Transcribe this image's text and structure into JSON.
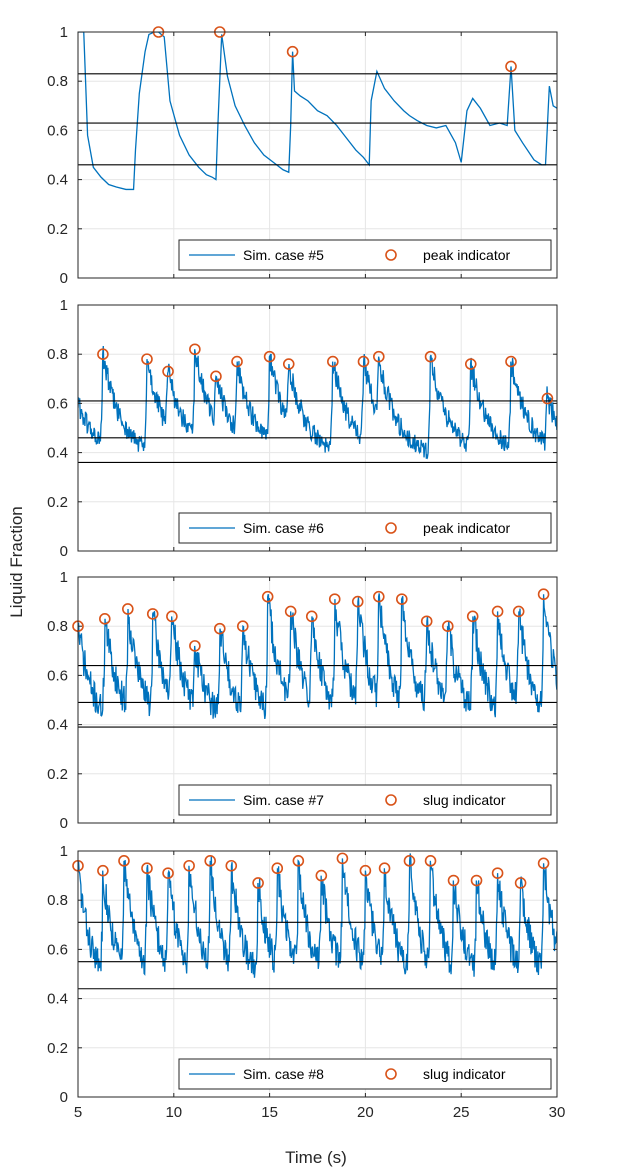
{
  "figure": {
    "ylabel": "Liquid Fraction",
    "xlabel": "Time (s)",
    "series_color": "#0072bd",
    "marker_color": "#d95319",
    "threshold_color": "#000000"
  },
  "chart_data": [
    {
      "type": "line",
      "xlim": [
        5,
        30
      ],
      "ylim": [
        0,
        1
      ],
      "grid": true,
      "xticks": [
        "",
        "",
        "",
        "",
        "",
        ""
      ],
      "yticks": [
        "0",
        "0.2",
        "0.4",
        "0.6",
        "0.8",
        "1"
      ],
      "legend": {
        "placement": "bottom-right",
        "line_label": "Sim. case #5",
        "marker_label": "peak indicator"
      },
      "thresholds": [
        0.83,
        0.63,
        0.46
      ],
      "peaks": {
        "x": [
          9.2,
          12.4,
          16.2,
          27.6
        ],
        "y": [
          1.0,
          1.0,
          0.92,
          0.86
        ]
      },
      "series": {
        "x": [
          5.0,
          5.3,
          5.5,
          5.8,
          6.2,
          6.6,
          7.0,
          7.5,
          7.9,
          8.0,
          8.2,
          8.5,
          8.7,
          9.0,
          9.2,
          9.5,
          9.8,
          10.3,
          10.8,
          11.3,
          11.7,
          12.0,
          12.2,
          12.3,
          12.5,
          12.8,
          13.2,
          13.7,
          14.2,
          14.7,
          15.2,
          15.7,
          16.0,
          16.1,
          16.2,
          16.3,
          16.6,
          17.0,
          17.5,
          18.0,
          18.5,
          19.0,
          19.5,
          19.9,
          20.2,
          20.3,
          20.6,
          21.0,
          21.5,
          22.0,
          22.3,
          22.7,
          23.2,
          23.7,
          24.2,
          24.7,
          25.0,
          25.3,
          25.6,
          26.0,
          26.5,
          27.0,
          27.4,
          27.6,
          27.8,
          28.2,
          28.8,
          29.2,
          29.4,
          29.6,
          29.8,
          30.0
        ],
        "y": [
          1.0,
          1.0,
          0.58,
          0.45,
          0.41,
          0.38,
          0.37,
          0.36,
          0.36,
          0.52,
          0.75,
          0.92,
          0.99,
          1.0,
          1.0,
          0.98,
          0.72,
          0.58,
          0.5,
          0.45,
          0.42,
          0.41,
          0.4,
          0.62,
          0.99,
          0.82,
          0.7,
          0.62,
          0.55,
          0.5,
          0.47,
          0.44,
          0.43,
          0.62,
          0.92,
          0.76,
          0.74,
          0.72,
          0.68,
          0.66,
          0.62,
          0.57,
          0.52,
          0.49,
          0.46,
          0.72,
          0.84,
          0.77,
          0.72,
          0.68,
          0.66,
          0.64,
          0.62,
          0.61,
          0.62,
          0.55,
          0.47,
          0.68,
          0.73,
          0.69,
          0.62,
          0.63,
          0.62,
          0.86,
          0.6,
          0.55,
          0.48,
          0.46,
          0.46,
          0.78,
          0.7,
          0.69
        ]
      }
    },
    {
      "type": "line",
      "xlim": [
        5,
        30
      ],
      "ylim": [
        0,
        1
      ],
      "grid": true,
      "xticks": [
        "",
        "",
        "",
        "",
        "",
        ""
      ],
      "yticks": [
        "0",
        "0.2",
        "0.4",
        "0.6",
        "0.8",
        "1"
      ],
      "legend": {
        "placement": "bottom-right",
        "line_label": "Sim. case #6",
        "marker_label": "peak indicator"
      },
      "thresholds": [
        0.61,
        0.46,
        0.36
      ],
      "peaks": {
        "x": [
          6.3,
          8.6,
          9.7,
          11.1,
          12.2,
          13.3,
          15.0,
          16.0,
          18.3,
          19.9,
          20.7,
          23.4,
          25.5,
          27.6,
          29.5
        ],
        "y": [
          0.8,
          0.78,
          0.73,
          0.82,
          0.71,
          0.77,
          0.79,
          0.76,
          0.77,
          0.77,
          0.79,
          0.79,
          0.76,
          0.77,
          0.62
        ]
      },
      "series": {
        "noise_seed": 61,
        "baseline": 0.36,
        "decay_amplitude": 0.28,
        "decay_rate": 1.1,
        "noise_amplitude": 0.05
      }
    },
    {
      "type": "line",
      "xlim": [
        5,
        30
      ],
      "ylim": [
        0,
        1
      ],
      "grid": true,
      "xticks": [
        "",
        "",
        "",
        "",
        "",
        ""
      ],
      "yticks": [
        "0",
        "0.2",
        "0.4",
        "0.6",
        "0.8",
        "1"
      ],
      "legend": {
        "placement": "bottom-right",
        "line_label": "Sim. case #7",
        "marker_label": "slug indicator"
      },
      "thresholds": [
        0.64,
        0.49,
        0.39
      ],
      "peaks": {
        "x": [
          5.0,
          6.4,
          7.6,
          8.9,
          9.9,
          11.1,
          12.4,
          13.6,
          14.9,
          16.1,
          17.2,
          18.4,
          19.6,
          20.7,
          21.9,
          23.2,
          24.3,
          25.6,
          26.9,
          28.0,
          29.3
        ],
        "y": [
          0.8,
          0.83,
          0.87,
          0.85,
          0.84,
          0.72,
          0.79,
          0.8,
          0.92,
          0.86,
          0.84,
          0.91,
          0.9,
          0.92,
          0.91,
          0.82,
          0.8,
          0.84,
          0.86,
          0.86,
          0.93
        ]
      },
      "series": {
        "noise_seed": 71,
        "baseline": 0.36,
        "decay_amplitude": 0.3,
        "decay_rate": 1.4,
        "noise_amplitude": 0.07
      }
    },
    {
      "type": "line",
      "xlim": [
        5,
        30
      ],
      "ylim": [
        0,
        1
      ],
      "grid": true,
      "xticks": [
        "5",
        "10",
        "15",
        "20",
        "25",
        "30"
      ],
      "yticks": [
        "0",
        "0.2",
        "0.4",
        "0.6",
        "0.8",
        "1"
      ],
      "legend": {
        "placement": "bottom-right",
        "line_label": "Sim. case #8",
        "marker_label": "slug indicator"
      },
      "thresholds": [
        0.71,
        0.55,
        0.44
      ],
      "peaks": {
        "x": [
          5.0,
          6.3,
          7.4,
          8.6,
          9.7,
          10.8,
          11.9,
          13.0,
          14.4,
          15.4,
          16.5,
          17.7,
          18.8,
          20.0,
          21.0,
          22.3,
          23.4,
          24.6,
          25.8,
          26.9,
          28.1,
          29.3
        ],
        "y": [
          0.94,
          0.92,
          0.96,
          0.93,
          0.91,
          0.94,
          0.96,
          0.94,
          0.87,
          0.93,
          0.96,
          0.9,
          0.97,
          0.92,
          0.93,
          0.96,
          0.96,
          0.88,
          0.88,
          0.91,
          0.87,
          0.95
        ]
      },
      "series": {
        "noise_seed": 83,
        "baseline": 0.42,
        "decay_amplitude": 0.32,
        "decay_rate": 1.6,
        "noise_amplitude": 0.07
      }
    }
  ]
}
